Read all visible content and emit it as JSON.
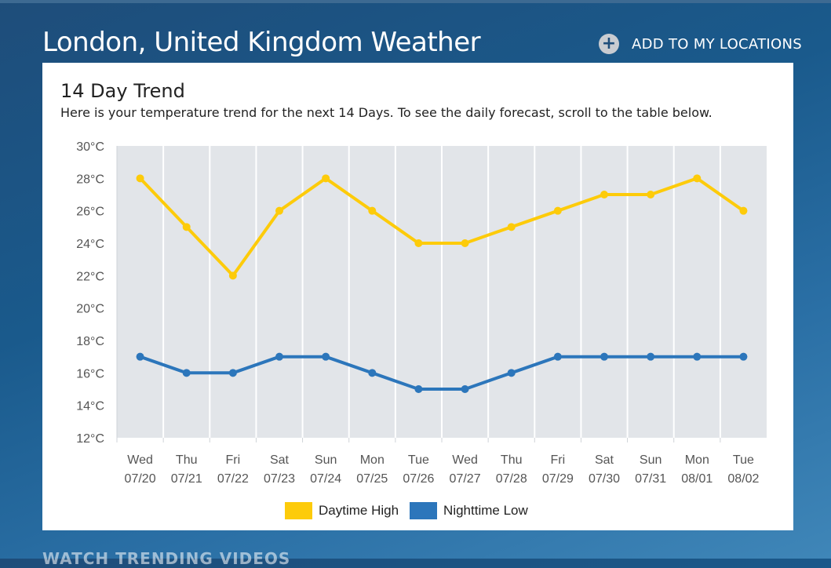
{
  "header": {
    "title": "London, United Kingdom Weather",
    "add_locations": "ADD TO MY LOCATIONS",
    "plus_symbol": "+"
  },
  "card": {
    "title": "14 Day Trend",
    "subtitle": "Here is your temperature trend for the next 14 Days. To see the daily forecast, scroll to the table below."
  },
  "footer": {
    "section_heading": "WATCH TRENDING VIDEOS"
  },
  "chart_data": {
    "type": "line",
    "title": "",
    "xlabel": "",
    "ylabel": "",
    "ylim": [
      12,
      30
    ],
    "y_ticks": [
      "30°C",
      "28°C",
      "26°C",
      "24°C",
      "22°C",
      "20°C",
      "18°C",
      "16°C",
      "14°C",
      "12°C"
    ],
    "grid": "vertical",
    "legend_position": "bottom",
    "categories": [
      {
        "day": "Wed",
        "date": "07/20"
      },
      {
        "day": "Thu",
        "date": "07/21"
      },
      {
        "day": "Fri",
        "date": "07/22"
      },
      {
        "day": "Sat",
        "date": "07/23"
      },
      {
        "day": "Sun",
        "date": "07/24"
      },
      {
        "day": "Mon",
        "date": "07/25"
      },
      {
        "day": "Tue",
        "date": "07/26"
      },
      {
        "day": "Wed",
        "date": "07/27"
      },
      {
        "day": "Thu",
        "date": "07/28"
      },
      {
        "day": "Fri",
        "date": "07/29"
      },
      {
        "day": "Sat",
        "date": "07/30"
      },
      {
        "day": "Sun",
        "date": "07/31"
      },
      {
        "day": "Mon",
        "date": "08/01"
      },
      {
        "day": "Tue",
        "date": "08/02"
      }
    ],
    "series": [
      {
        "name": "Daytime High",
        "color": "#fdcb0a",
        "values": [
          28,
          25,
          22,
          26,
          28,
          26,
          24,
          24,
          25,
          26,
          27,
          27,
          28,
          26
        ]
      },
      {
        "name": "Nighttime Low",
        "color": "#2c76bb",
        "values": [
          17,
          16,
          16,
          17,
          17,
          16,
          15,
          15,
          16,
          17,
          17,
          17,
          17,
          17
        ]
      }
    ],
    "colors": {
      "plot_background": "#e2e5e9",
      "gridline": "#ffffff",
      "tick_text": "#555555"
    }
  }
}
